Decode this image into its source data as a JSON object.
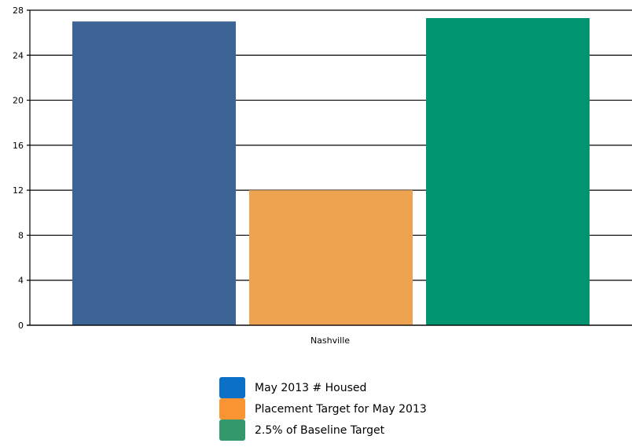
{
  "chart_data": {
    "type": "bar",
    "categories": [
      "Nashville"
    ],
    "series": [
      {
        "name": "May 2013 # Housed",
        "values": [
          27
        ],
        "color": "#3c6494",
        "legend_color": "#0b70c8"
      },
      {
        "name": "Placement Target for May 2013",
        "values": [
          12
        ],
        "color": "#eea350",
        "legend_color": "#fb9534"
      },
      {
        "name": "2.5% of Baseline Target",
        "values": [
          27.3
        ],
        "color": "#009470",
        "legend_color": "#33986b"
      }
    ],
    "title": "",
    "xlabel": "",
    "ylabel": "",
    "ylim": [
      0,
      28
    ],
    "yticks": [
      "0",
      "4",
      "8",
      "12",
      "16",
      "20",
      "24",
      "28"
    ],
    "grid": true,
    "legend_position": "bottom"
  }
}
